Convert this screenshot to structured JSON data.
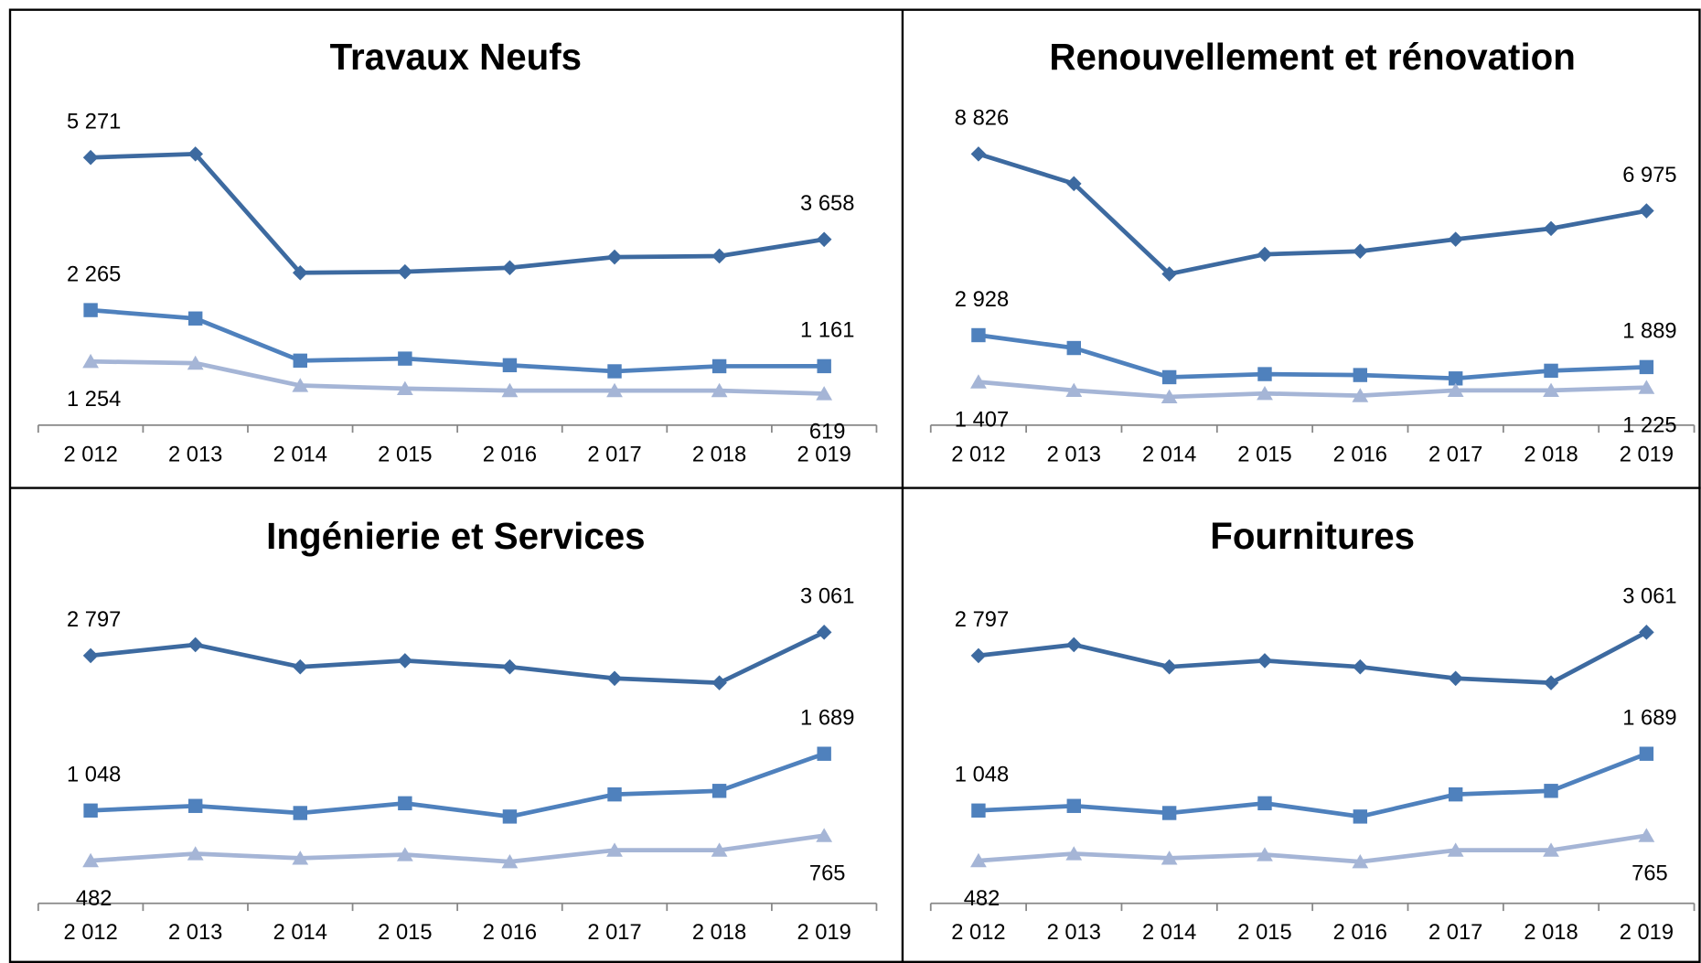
{
  "chart_data": [
    {
      "type": "line",
      "title": "Travaux Neufs",
      "categories": [
        "2 012",
        "2 013",
        "2 014",
        "2 015",
        "2 016",
        "2 017",
        "2 018",
        "2 019"
      ],
      "series": [
        {
          "color": "#3d6aa0",
          "marker": "diamond",
          "values": [
            5271,
            5340,
            3000,
            3020,
            3100,
            3310,
            3330,
            3658
          ],
          "value_labels": [
            "5 271",
            null,
            null,
            null,
            null,
            null,
            null,
            "3 658"
          ]
        },
        {
          "color": "#4f81bd",
          "marker": "square",
          "values": [
            2265,
            2100,
            1270,
            1310,
            1180,
            1060,
            1160,
            1161
          ],
          "value_labels": [
            "2 265",
            null,
            null,
            null,
            null,
            null,
            null,
            "1 161"
          ]
        },
        {
          "color": "#a5b5d6",
          "marker": "triangle",
          "values": [
            1254,
            1220,
            780,
            720,
            680,
            680,
            680,
            619
          ],
          "value_labels": [
            "1 254",
            null,
            null,
            null,
            null,
            null,
            null,
            "619"
          ]
        }
      ]
    },
    {
      "type": "line",
      "title": "Renouvellement et rénovation",
      "categories": [
        "2 012",
        "2 013",
        "2 014",
        "2 015",
        "2 016",
        "2 017",
        "2 018",
        "2 019"
      ],
      "series": [
        {
          "color": "#3d6aa0",
          "marker": "diamond",
          "values": [
            8826,
            7860,
            4920,
            5560,
            5660,
            6050,
            6400,
            6975
          ],
          "value_labels": [
            "8 826",
            null,
            null,
            null,
            null,
            null,
            null,
            "6 975"
          ]
        },
        {
          "color": "#4f81bd",
          "marker": "square",
          "values": [
            2928,
            2510,
            1560,
            1660,
            1630,
            1520,
            1770,
            1889
          ],
          "value_labels": [
            "2 928",
            null,
            null,
            null,
            null,
            null,
            null,
            "1 889"
          ]
        },
        {
          "color": "#a5b5d6",
          "marker": "triangle",
          "values": [
            1407,
            1130,
            920,
            1030,
            960,
            1130,
            1130,
            1225
          ],
          "value_labels": [
            "1 407",
            null,
            null,
            null,
            null,
            null,
            null,
            "1 225"
          ]
        }
      ]
    },
    {
      "type": "line",
      "title": "Ingénierie et Services",
      "categories": [
        "2 012",
        "2 013",
        "2 014",
        "2 015",
        "2 016",
        "2 017",
        "2 018",
        "2 019"
      ],
      "series": [
        {
          "color": "#3d6aa0",
          "marker": "diamond",
          "values": [
            2797,
            2920,
            2670,
            2740,
            2670,
            2540,
            2490,
            3061
          ],
          "value_labels": [
            "2 797",
            null,
            null,
            null,
            null,
            null,
            null,
            "3 061"
          ]
        },
        {
          "color": "#4f81bd",
          "marker": "square",
          "values": [
            1048,
            1100,
            1020,
            1130,
            980,
            1230,
            1270,
            1689
          ],
          "value_labels": [
            "1 048",
            null,
            null,
            null,
            null,
            null,
            null,
            "1 689"
          ]
        },
        {
          "color": "#a5b5d6",
          "marker": "triangle",
          "values": [
            482,
            560,
            510,
            550,
            470,
            600,
            600,
            765
          ],
          "value_labels": [
            "482",
            null,
            null,
            null,
            null,
            null,
            null,
            "765"
          ]
        }
      ]
    },
    {
      "type": "line",
      "title": "Fournitures",
      "categories": [
        "2 012",
        "2 013",
        "2 014",
        "2 015",
        "2 016",
        "2 017",
        "2 018",
        "2 019"
      ],
      "series": [
        {
          "color": "#3d6aa0",
          "marker": "diamond",
          "values": [
            2797,
            2920,
            2670,
            2740,
            2670,
            2540,
            2490,
            3061
          ],
          "value_labels": [
            "2 797",
            null,
            null,
            null,
            null,
            null,
            null,
            "3 061"
          ]
        },
        {
          "color": "#4f81bd",
          "marker": "square",
          "values": [
            1048,
            1100,
            1020,
            1130,
            980,
            1230,
            1270,
            1689
          ],
          "value_labels": [
            "1 048",
            null,
            null,
            null,
            null,
            null,
            null,
            "1 689"
          ]
        },
        {
          "color": "#a5b5d6",
          "marker": "triangle",
          "values": [
            482,
            560,
            510,
            550,
            470,
            600,
            600,
            765
          ],
          "value_labels": [
            "482",
            null,
            null,
            null,
            null,
            null,
            null,
            "765"
          ]
        }
      ]
    }
  ]
}
